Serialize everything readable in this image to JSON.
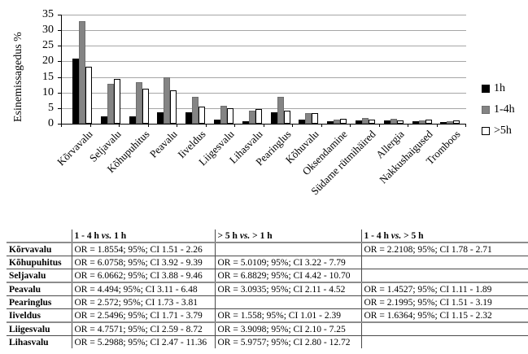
{
  "chart": {
    "y_axis_title": "Esinemissagedus %"
  },
  "chart_data": {
    "type": "bar",
    "title": "",
    "xlabel": "",
    "ylabel": "Esinemissagedus %",
    "ylim": [
      0,
      35
    ],
    "ytick_step": 5,
    "grid": true,
    "legend_position": "right",
    "categories": [
      "Kõrvavalu",
      "Seljavalu",
      "Kõhupuhitus",
      "Peavalu",
      "Iiveldus",
      "Liigesvalu",
      "Lihasvalu",
      "Pearinglus",
      "Kõhuvalu",
      "Oksendamine",
      "Südame rütmihäired",
      "Allergia",
      "Nakkushaigused",
      "Tromboos"
    ],
    "series": [
      {
        "name": "1h",
        "color": "#000000",
        "border": "#000000",
        "values": [
          21.0,
          2.3,
          2.4,
          3.7,
          3.6,
          1.3,
          0.8,
          3.6,
          1.3,
          0.9,
          1.0,
          1.0,
          0.8,
          0.5
        ]
      },
      {
        "name": "1-4h",
        "color": "#848484",
        "border": "#6e6e6e",
        "values": [
          33.0,
          12.8,
          13.3,
          15.0,
          8.6,
          5.8,
          4.1,
          8.5,
          3.3,
          1.2,
          1.8,
          1.6,
          1.1,
          0.9
        ]
      },
      {
        "name": ">5h",
        "color": "#ffffff",
        "border": "#000000",
        "values": [
          18.3,
          14.3,
          11.3,
          10.8,
          5.5,
          4.9,
          4.6,
          4.2,
          3.5,
          1.5,
          1.3,
          1.1,
          1.3,
          1.0
        ]
      }
    ]
  },
  "table": {
    "headers": [
      {
        "pre": "",
        "vs": "",
        "post": ""
      },
      {
        "pre": "1 - 4 h ",
        "vs": "vs.",
        "post": " 1 h"
      },
      {
        "pre": "> 5 h ",
        "vs": "vs.",
        "post": " > 1 h"
      },
      {
        "pre": "1 - 4 h ",
        "vs": "vs.",
        "post": " > 5 h"
      }
    ],
    "rows": [
      {
        "label": "Kõrvavalu",
        "cells": [
          "OR = 1.8554; 95%; CI 1.51 - 2.26",
          "",
          "OR = 2.2108; 95%; CI 1.78 - 2.71"
        ]
      },
      {
        "label": "Kõhupuhitus",
        "cells": [
          "OR = 6.0758; 95%; CI 3.92 - 9.39",
          "OR = 5.0109; 95%; CI 3.22 - 7.79",
          ""
        ]
      },
      {
        "label": "Seljavalu",
        "cells": [
          "OR = 6.0662; 95%; CI 3.88 - 9.46",
          "OR = 6.8829; 95%; CI 4.42 - 10.70",
          ""
        ]
      },
      {
        "label": "Peavalu",
        "cells": [
          "OR = 4.494; 95%; CI 3.11 - 6.48",
          "OR = 3.0935; 95%; CI 2.11 - 4.52",
          "OR = 1.4527; 95%; CI 1.11 - 1.89"
        ]
      },
      {
        "label": "Pearinglus",
        "cells": [
          "OR = 2.572; 95%; CI 1.73 - 3.81",
          "",
          "OR = 2.1995; 95%; CI 1.51 - 3.19"
        ]
      },
      {
        "label": "Iiveldus",
        "cells": [
          "OR = 2.5496; 95%; CI 1.71 - 3.79",
          "OR = 1.558; 95%; CI 1.01 - 2.39",
          "OR = 1.6364; 95%; CI 1.15 - 2.32"
        ]
      },
      {
        "label": "Liigesvalu",
        "cells": [
          "OR = 4.7571; 95%; CI 2.59 - 8.72",
          "OR = 3.9098; 95%; CI 2.10 - 7.25",
          ""
        ]
      },
      {
        "label": "Lihasvalu",
        "cells": [
          "OR = 5.2988; 95%; CI 2.47 - 11.36",
          "OR = 5.9757; 95%; CI 2.80 - 12.72",
          ""
        ]
      }
    ],
    "thick_after_rows": [
      2,
      5
    ]
  },
  "colors": {
    "grid": "#a6a6a6",
    "axis": "#000000"
  }
}
